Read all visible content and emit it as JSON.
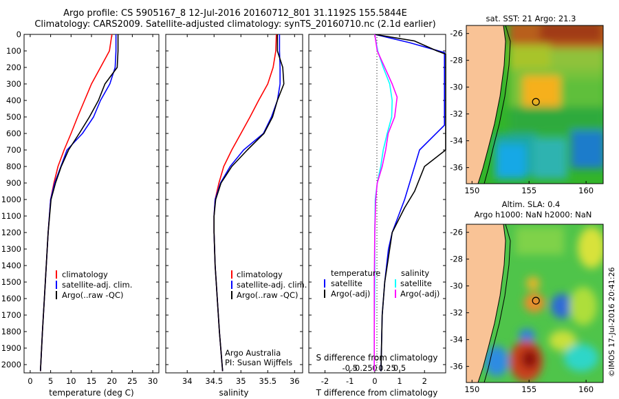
{
  "header": {
    "line1": "Argo profile: CS 5905167_8 12-Jul-2016 20160712_801 31.1192S 155.5844E",
    "line2": "Climatology: CARS2009. Satellite-adjusted climatology: synTS_20160710.nc (2.1d earlier)"
  },
  "footer": {
    "org": "Argo Australia",
    "pi": "PI: Susan Wijffels",
    "stamp": "©IMOS 17-Jul-2016 20:41:26"
  },
  "colors": {
    "climatology": "#ff0000",
    "satellite": "#0000ff",
    "argo": "#000000",
    "sal_satellite": "#00ffff",
    "sal_argo": "#ff00ff",
    "land": "#f9c396"
  },
  "chart_data": [
    {
      "type": "line",
      "xlabel": "temperature (deg C)",
      "ylabel": "",
      "xlim": [
        -1.5,
        31.5
      ],
      "ylim": [
        2050,
        0
      ],
      "x_ticks": [
        0,
        5,
        10,
        15,
        20,
        25,
        30
      ],
      "y_ticks": [
        0,
        100,
        200,
        300,
        400,
        500,
        600,
        700,
        800,
        900,
        1000,
        1100,
        1200,
        1300,
        1400,
        1500,
        1600,
        1700,
        1800,
        1900,
        2000
      ],
      "legend": [
        "climatology",
        "satellite-adj. clim.",
        "Argo(..raw -QC)"
      ],
      "legend_position": "lower-center",
      "series": [
        {
          "name": "climatology",
          "color": "#ff0000",
          "points": [
            [
              20.0,
              0
            ],
            [
              19.4,
              100
            ],
            [
              17.2,
              200
            ],
            [
              15.0,
              300
            ],
            [
              13.3,
              400
            ],
            [
              11.6,
              500
            ],
            [
              10.0,
              600
            ],
            [
              8.3,
              700
            ],
            [
              6.8,
              800
            ],
            [
              5.8,
              900
            ],
            [
              5.0,
              1000
            ],
            [
              4.4,
              1200
            ],
            [
              3.7,
              1500
            ],
            [
              3.0,
              1800
            ],
            [
              2.5,
              2040
            ]
          ]
        },
        {
          "name": "satellite-adj. clim.",
          "color": "#0000ff",
          "points": [
            [
              21.0,
              0
            ],
            [
              21.0,
              100
            ],
            [
              20.8,
              200
            ],
            [
              19.5,
              300
            ],
            [
              17.2,
              400
            ],
            [
              15.5,
              500
            ],
            [
              12.8,
              600
            ],
            [
              9.0,
              700
            ],
            [
              7.5,
              800
            ],
            [
              6.0,
              900
            ],
            [
              5.0,
              1000
            ],
            [
              4.4,
              1200
            ],
            [
              3.7,
              1500
            ],
            [
              3.0,
              1800
            ],
            [
              2.5,
              2040
            ]
          ]
        },
        {
          "name": "Argo(..raw -QC)",
          "color": "#000000",
          "points": [
            [
              21.5,
              0
            ],
            [
              21.5,
              100
            ],
            [
              21.3,
              200
            ],
            [
              18.3,
              300
            ],
            [
              16.7,
              400
            ],
            [
              14.5,
              500
            ],
            [
              12.0,
              600
            ],
            [
              9.4,
              700
            ],
            [
              7.6,
              800
            ],
            [
              6.2,
              900
            ],
            [
              5.1,
              1000
            ],
            [
              4.4,
              1200
            ],
            [
              3.7,
              1500
            ],
            [
              3.0,
              1800
            ],
            [
              2.5,
              2040
            ]
          ]
        }
      ]
    },
    {
      "type": "line",
      "xlabel": "salinity",
      "ylabel": "",
      "xlim": [
        33.6,
        36.15
      ],
      "ylim": [
        2050,
        0
      ],
      "x_ticks": [
        34,
        34.5,
        35,
        35.5,
        36
      ],
      "legend": [
        "climatology",
        "satellite-adj. clim.",
        "Argo(..raw -QC)"
      ],
      "legend_position": "lower-right",
      "series": [
        {
          "name": "climatology",
          "color": "#ff0000",
          "points": [
            [
              35.66,
              0
            ],
            [
              35.65,
              100
            ],
            [
              35.6,
              200
            ],
            [
              35.5,
              300
            ],
            [
              35.33,
              400
            ],
            [
              35.17,
              500
            ],
            [
              35.0,
              600
            ],
            [
              34.83,
              700
            ],
            [
              34.68,
              800
            ],
            [
              34.59,
              900
            ],
            [
              34.52,
              1000
            ],
            [
              34.5,
              1100
            ],
            [
              34.5,
              1200
            ],
            [
              34.52,
              1400
            ],
            [
              34.56,
              1600
            ],
            [
              34.6,
              1800
            ],
            [
              34.66,
              2040
            ]
          ]
        },
        {
          "name": "satellite-adj. clim.",
          "color": "#0000ff",
          "points": [
            [
              35.72,
              0
            ],
            [
              35.72,
              100
            ],
            [
              35.73,
              200
            ],
            [
              35.73,
              300
            ],
            [
              35.68,
              400
            ],
            [
              35.57,
              500
            ],
            [
              35.42,
              600
            ],
            [
              35.05,
              700
            ],
            [
              34.8,
              800
            ],
            [
              34.62,
              900
            ],
            [
              34.52,
              1000
            ],
            [
              34.5,
              1100
            ],
            [
              34.5,
              1200
            ],
            [
              34.52,
              1400
            ],
            [
              34.56,
              1600
            ],
            [
              34.6,
              1800
            ],
            [
              34.66,
              2040
            ]
          ]
        },
        {
          "name": "Argo(..raw -QC)",
          "color": "#000000",
          "points": [
            [
              35.68,
              0
            ],
            [
              35.68,
              100
            ],
            [
              35.78,
              200
            ],
            [
              35.8,
              300
            ],
            [
              35.68,
              400
            ],
            [
              35.59,
              500
            ],
            [
              35.43,
              600
            ],
            [
              35.12,
              700
            ],
            [
              34.83,
              800
            ],
            [
              34.63,
              900
            ],
            [
              34.53,
              1000
            ],
            [
              34.5,
              1100
            ],
            [
              34.5,
              1200
            ],
            [
              34.52,
              1400
            ],
            [
              34.56,
              1600
            ],
            [
              34.6,
              1800
            ],
            [
              34.66,
              2040
            ]
          ]
        }
      ]
    },
    {
      "type": "line",
      "xlabel": "T difference from climatology",
      "xlabel_top": "S difference from climatology",
      "ylabel": "",
      "xlim": [
        -2.65,
        2.85
      ],
      "ylim": [
        2050,
        0
      ],
      "x_ticks": [
        -2,
        -1,
        0,
        1,
        2
      ],
      "s_ticks": [
        -0.5,
        -0.25,
        0,
        0.25,
        0.5
      ],
      "legend_temperature": {
        "title": "temperature",
        "items": [
          "satellite",
          "Argo(-adj)"
        ]
      },
      "legend_salinity": {
        "title": "salinity",
        "items": [
          "satellite",
          "Argo(-adj)"
        ]
      },
      "series": [
        {
          "name": "satellite",
          "group": "temperature",
          "color": "#0000ff",
          "points": [
            [
              0.0,
              0
            ],
            [
              1.4,
              50
            ],
            [
              2.8,
              110
            ],
            [
              2.8,
              550
            ],
            [
              1.8,
              700
            ],
            [
              1.6,
              800
            ],
            [
              1.2,
              1000
            ],
            [
              0.7,
              1200
            ],
            [
              0.55,
              1300
            ],
            [
              0.4,
              1500
            ],
            [
              0.3,
              1700
            ],
            [
              0.25,
              2040
            ]
          ]
        },
        {
          "name": "Argo(-adj)",
          "group": "temperature",
          "color": "#000000",
          "points": [
            [
              0.0,
              0
            ],
            [
              1.6,
              40
            ],
            [
              2.5,
              100
            ],
            [
              2.85,
              120
            ],
            [
              2.85,
              700
            ],
            [
              2.0,
              800
            ],
            [
              1.6,
              950
            ],
            [
              1.2,
              1050
            ],
            [
              0.7,
              1200
            ],
            [
              0.4,
              1500
            ],
            [
              0.3,
              1700
            ],
            [
              0.25,
              2040
            ]
          ]
        },
        {
          "name": "satellite",
          "group": "salinity",
          "color": "#00ffff",
          "points": [
            [
              0.0,
              0
            ],
            [
              0.06,
              100
            ],
            [
              0.17,
              200
            ],
            [
              0.3,
              300
            ],
            [
              0.35,
              400
            ],
            [
              0.34,
              500
            ],
            [
              0.25,
              600
            ],
            [
              0.17,
              700
            ],
            [
              0.12,
              800
            ],
            [
              0.05,
              900
            ],
            [
              0.01,
              1000
            ],
            [
              0.0,
              1200
            ],
            [
              0.0,
              1500
            ],
            [
              -0.01,
              1800
            ],
            [
              -0.01,
              2040
            ]
          ]
        },
        {
          "name": "Argo(-adj)",
          "group": "salinity",
          "color": "#ff00ff",
          "points": [
            [
              0.0,
              0
            ],
            [
              0.05,
              100
            ],
            [
              0.2,
              200
            ],
            [
              0.35,
              300
            ],
            [
              0.45,
              380
            ],
            [
              0.4,
              500
            ],
            [
              0.27,
              600
            ],
            [
              0.22,
              700
            ],
            [
              0.15,
              800
            ],
            [
              0.05,
              900
            ],
            [
              0.02,
              1000
            ],
            [
              0.0,
              1200
            ],
            [
              -0.01,
              1500
            ],
            [
              -0.01,
              1800
            ],
            [
              -0.01,
              2040
            ]
          ]
        }
      ]
    },
    {
      "type": "heatmap",
      "title": "sat. SST: 21  Argo: 21.3",
      "xlim": [
        149.5,
        161.5
      ],
      "ylim": [
        -37.2,
        -25.4
      ],
      "x_ticks": [
        150,
        155,
        160
      ],
      "y_ticks": [
        -26,
        -28,
        -30,
        -32,
        -34,
        -36
      ],
      "marker": {
        "lon": 155.6,
        "lat": -31.1
      }
    },
    {
      "type": "heatmap",
      "title": "Altim. SLA: 0.4",
      "subtitle": "Argo h1000: NaN h2000: NaN",
      "xlim": [
        149.5,
        161.5
      ],
      "ylim": [
        -37.2,
        -25.4
      ],
      "x_ticks": [
        150,
        155,
        160
      ],
      "y_ticks": [
        -26,
        -28,
        -30,
        -32,
        -34,
        -36
      ],
      "marker": {
        "lon": 155.6,
        "lat": -31.1
      }
    }
  ]
}
